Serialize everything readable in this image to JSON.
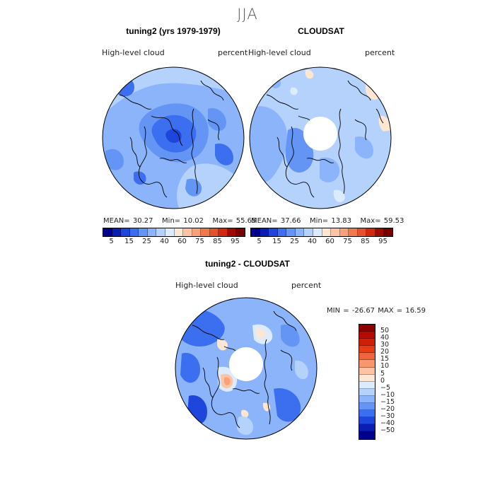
{
  "figure": {
    "season": "JJA"
  },
  "panels": [
    {
      "title": "tuning2 (yrs 1979-1979)",
      "variable": "High-level cloud",
      "units": "percent",
      "stats": {
        "mean_label": "MEAN=",
        "mean": "30.27",
        "min_label": "Min=",
        "min": "10.02",
        "max_label": "Max=",
        "max": "55.65"
      },
      "colorbar": {
        "labels": [
          "5",
          "15",
          "25",
          "40",
          "60",
          "75",
          "85",
          "95"
        ]
      }
    },
    {
      "title": "CLOUDSAT",
      "variable": "High-level cloud",
      "units": "percent",
      "stats": {
        "mean_label": "MEAN=",
        "mean": "37.66",
        "min_label": "Min=",
        "min": "13.83",
        "max_label": "Max=",
        "max": "59.53"
      },
      "colorbar": {
        "labels": [
          "5",
          "15",
          "25",
          "40",
          "60",
          "75",
          "85",
          "95"
        ]
      }
    },
    {
      "title": "tuning2 - CLOUDSAT",
      "variable": "High-level cloud",
      "units": "percent",
      "stats": {
        "min_label": "MIN =",
        "min": "-26.67",
        "max_label": "MAX =",
        "max": "16.59"
      },
      "colorbar": {
        "labels": [
          "50",
          "40",
          "30",
          "20",
          "15",
          "10",
          "5",
          "0",
          "−5",
          "−10",
          "−15",
          "−20",
          "−30",
          "−40",
          "−50"
        ]
      }
    }
  ],
  "colors": {
    "absolute_scale": [
      "#00008c",
      "#0a1eb4",
      "#1e46dc",
      "#3c6ef0",
      "#6495f5",
      "#8cb4fa",
      "#b4d2fc",
      "#dcebfe",
      "#fde6d2",
      "#fcc3a5",
      "#f8a078",
      "#f0784b",
      "#e6502d",
      "#d2280f",
      "#a00a05",
      "#780000"
    ],
    "difference_scale": [
      "#8c0000",
      "#b40a00",
      "#d21e05",
      "#e63c14",
      "#f0643c",
      "#f8966e",
      "#fcc3a5",
      "#fde6d2",
      "#dcebfe",
      "#b4d2fc",
      "#8cb4fa",
      "#6495f5",
      "#3c6ef0",
      "#1e46dc",
      "#0a1eb4",
      "#00008c"
    ]
  }
}
